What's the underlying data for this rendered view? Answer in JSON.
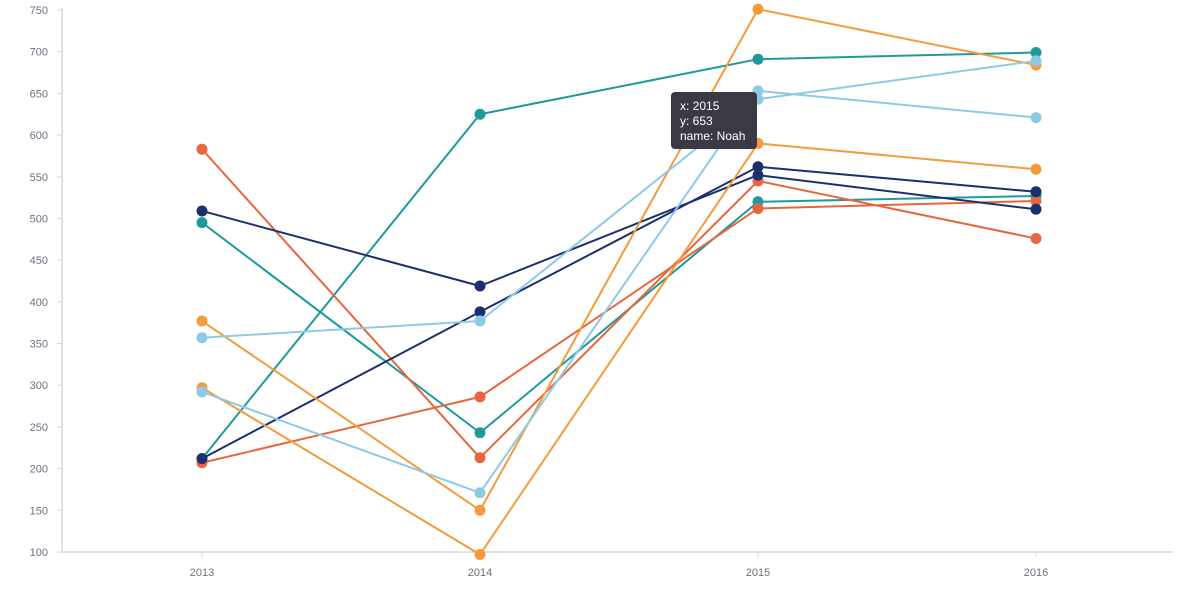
{
  "chart_data": {
    "type": "line",
    "x": [
      2013,
      2014,
      2015,
      2016
    ],
    "xlim": [
      2012.5,
      2016.5
    ],
    "ylim": [
      100,
      750
    ],
    "y_ticks": [
      100,
      150,
      200,
      250,
      300,
      350,
      400,
      450,
      500,
      550,
      600,
      650,
      700,
      750
    ],
    "grid": false,
    "legend": "none",
    "series": [
      {
        "color": "#1f9a9a",
        "values": [
          212,
          625,
          691,
          699
        ]
      },
      {
        "color": "#1f9a9a",
        "values": [
          495,
          243,
          520,
          527
        ]
      },
      {
        "color": "#e8663d",
        "values": [
          583,
          213,
          545,
          476
        ]
      },
      {
        "color": "#e8663d",
        "values": [
          207,
          286,
          512,
          521
        ]
      },
      {
        "color": "#1c2f6e",
        "values": [
          509,
          419,
          552,
          511
        ]
      },
      {
        "color": "#1c2f6e",
        "values": [
          212,
          388,
          562,
          532
        ]
      },
      {
        "color": "#f59b3d",
        "values": [
          377,
          150,
          751,
          684
        ]
      },
      {
        "color": "#f59b3d",
        "values": [
          297,
          97,
          590,
          559
        ]
      },
      {
        "color": "#8ecae6",
        "values": [
          357,
          377,
          643,
          689
        ]
      },
      {
        "name": "Noah",
        "color": "#8ecae6",
        "values": [
          292,
          171,
          653,
          621
        ]
      }
    ],
    "tooltip": {
      "x_line": "x: 2015",
      "y_line": "y: 653",
      "name_line": "name: Noah"
    }
  }
}
